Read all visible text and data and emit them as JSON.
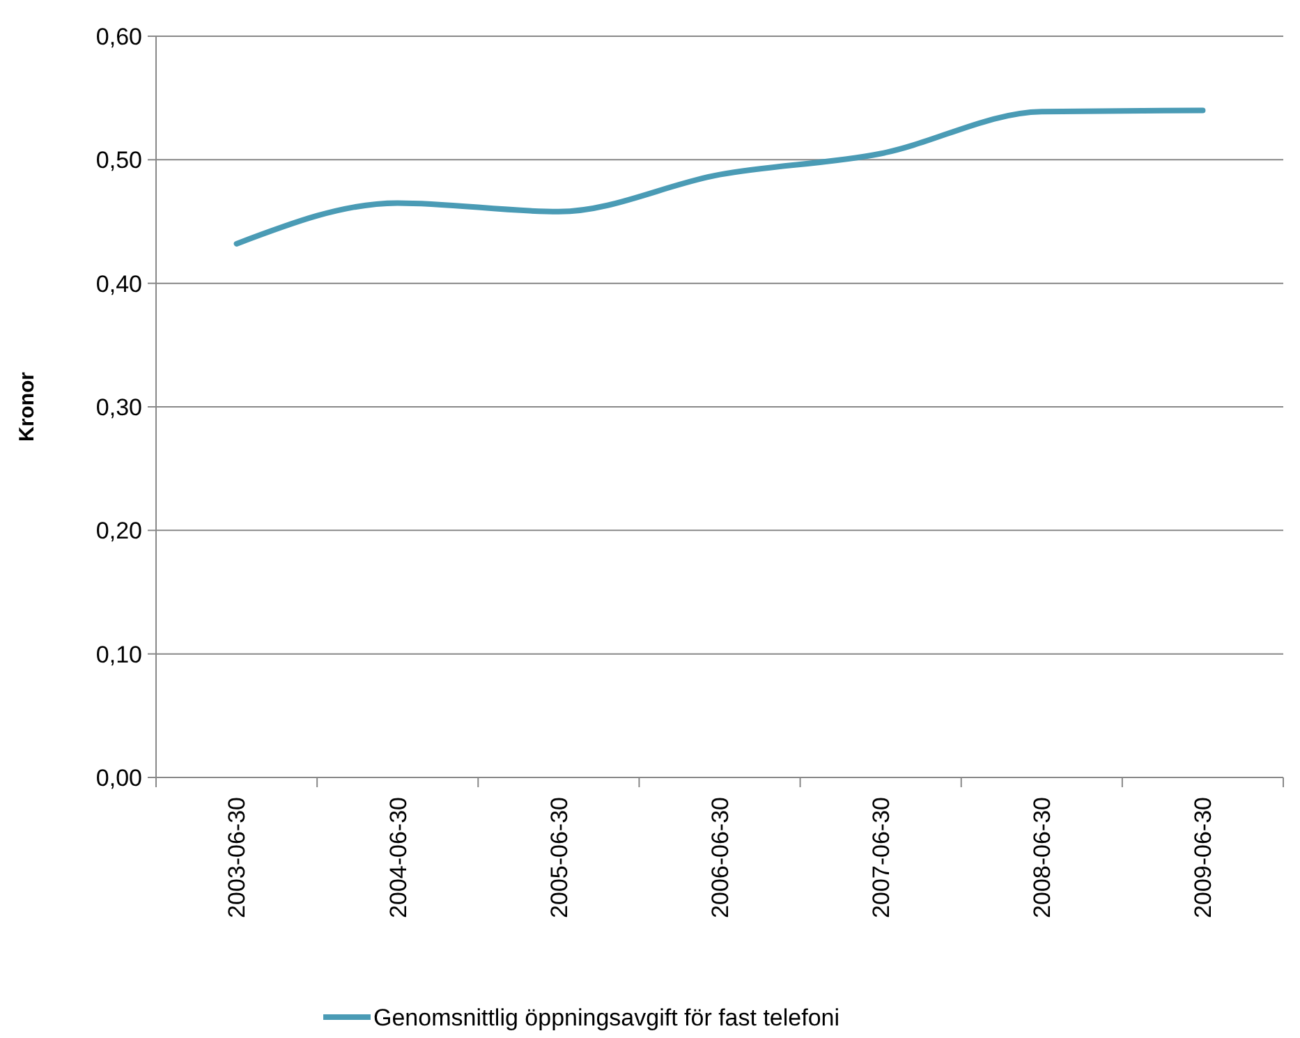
{
  "chart_data": {
    "type": "line",
    "ylabel": "Kronor",
    "categories": [
      "2003-06-30",
      "2004-06-30",
      "2005-06-30",
      "2006-06-30",
      "2007-06-30",
      "2008-06-30",
      "2009-06-30"
    ],
    "series": [
      {
        "name": "Genomsnittlig öppningsavgift för fast telefoni",
        "color": "#4a9bb5",
        "values": [
          0.432,
          0.465,
          0.458,
          0.488,
          0.505,
          0.539,
          0.54
        ]
      }
    ],
    "ylim": [
      0,
      0.6
    ],
    "yticks": [
      {
        "value": 0,
        "label": "0,00"
      },
      {
        "value": 0.1,
        "label": "0,10"
      },
      {
        "value": 0.2,
        "label": "0,20"
      },
      {
        "value": 0.3,
        "label": "0,30"
      },
      {
        "value": 0.4,
        "label": "0,40"
      },
      {
        "value": 0.5,
        "label": "0,50"
      },
      {
        "value": 0.6,
        "label": "0,60"
      }
    ],
    "grid": "y",
    "legend": "bottom",
    "line_style": "solid",
    "marker": "none"
  }
}
